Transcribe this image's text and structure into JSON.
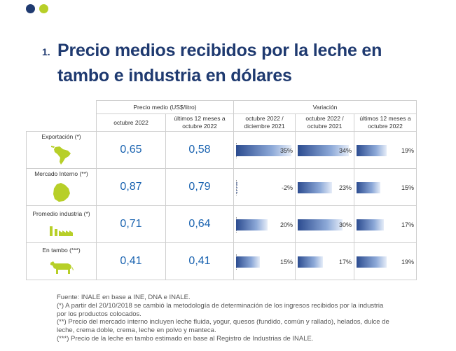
{
  "title": {
    "number": "1.",
    "line1": "Precio medios recibidos por la leche en",
    "line2": "tambo e industria en dólares"
  },
  "table": {
    "group_price": "Precio medio (US$/litro)",
    "group_variation": "Variación",
    "columns": [
      "octubre 2022",
      "últimos 12 meses a octubre 2022",
      "octubre 2022 / diciembre 2021",
      "octubre 2022 / octubre 2021",
      "últimos 12 meses a octubre 2022"
    ],
    "rows": [
      {
        "label": "Exportación (*)",
        "icon": "south-america-map-icon",
        "price_oct": "0,65",
        "price_12m": "0,58",
        "var1": "35%",
        "var1_value": 35,
        "var2": "34%",
        "var2_value": 34,
        "var3": "19%",
        "var3_value": 19
      },
      {
        "label": "Mercado Interno (**)",
        "icon": "uruguay-map-icon",
        "price_oct": "0,87",
        "price_12m": "0,79",
        "var1": "-2%",
        "var1_value": -2,
        "var2": "23%",
        "var2_value": 23,
        "var3": "15%",
        "var3_value": 15
      },
      {
        "label": "Promedio industria (*)",
        "icon": "factory-icon",
        "price_oct": "0,71",
        "price_12m": "0,64",
        "var1": "20%",
        "var1_value": 20,
        "var2": "30%",
        "var2_value": 30,
        "var3": "17%",
        "var3_value": 17
      },
      {
        "label": "En tambo (***)",
        "icon": "cow-icon",
        "price_oct": "0,41",
        "price_12m": "0,41",
        "var1": "15%",
        "var1_value": 15,
        "var2": "17%",
        "var2_value": 17,
        "var3": "19%",
        "var3_value": 19
      }
    ],
    "colors": {
      "accent": "#b7cf28",
      "brand": "#1f3a70",
      "value": "#1a63b0"
    }
  },
  "notes": {
    "source": "Fuente: INALE en base a INE, DNA e INALE.",
    "note1": "(*) A partir del 20/10/2018 se cambió la metodología de determinación de los ingresos recibidos por la industria por los productos colocados.",
    "note2": "(**) Precio del mercado interno incluyen leche fluida, yogur, quesos (fundido, común y rallado), helados, dulce de leche, crema doble, crema, leche en polvo y manteca.",
    "note3": "(***) Precio de la leche en tambo estimado en base al Registro de Industrias de INALE."
  }
}
